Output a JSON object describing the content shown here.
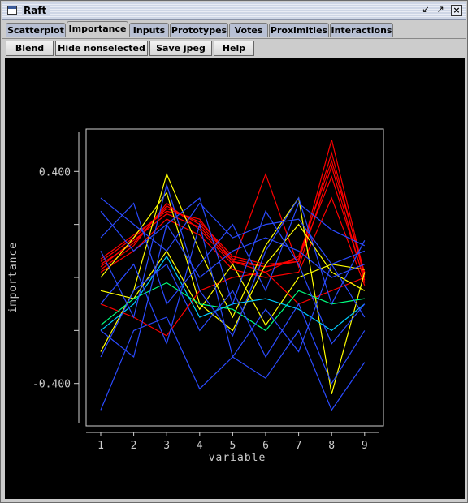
{
  "window": {
    "title": "Raft"
  },
  "tabs": [
    {
      "label": "Scatterplot",
      "active": false
    },
    {
      "label": "Importance",
      "active": true
    },
    {
      "label": "Inputs",
      "active": false
    },
    {
      "label": "Prototypes",
      "active": false
    },
    {
      "label": "Votes",
      "active": false
    },
    {
      "label": "Proximities",
      "active": false
    },
    {
      "label": "Interactions",
      "active": false
    }
  ],
  "toolbar": {
    "blend": "Blend",
    "hide_nonselected": "Hide nonselected",
    "save_jpeg": "Save jpeg",
    "help": "Help"
  },
  "chart_data": {
    "type": "line",
    "xlabel": "variable",
    "ylabel": "importance",
    "categories": [
      "1",
      "2",
      "3",
      "4",
      "5",
      "6",
      "7",
      "8",
      "9"
    ],
    "ylim": [
      -0.56,
      0.56
    ],
    "yticks": [
      -0.4,
      0.4
    ],
    "ytick_labels": [
      "-0.400",
      "0.400"
    ],
    "series": [
      {
        "color": "#ff0000",
        "values": [
          0.05,
          0.13,
          0.27,
          0.2,
          0.07,
          0.04,
          0.06,
          0.47,
          0.0
        ]
      },
      {
        "color": "#ff0000",
        "values": [
          0.07,
          0.16,
          0.25,
          0.22,
          0.06,
          0.02,
          0.08,
          0.44,
          0.02
        ]
      },
      {
        "color": "#ff0000",
        "values": [
          0.03,
          0.12,
          0.28,
          0.18,
          0.05,
          0.39,
          0.04,
          0.42,
          -0.02
        ]
      },
      {
        "color": "#ff0000",
        "values": [
          0.06,
          0.15,
          0.26,
          0.21,
          0.08,
          0.05,
          0.06,
          0.52,
          0.01
        ]
      },
      {
        "color": "#ff0000",
        "values": [
          0.04,
          0.14,
          0.24,
          0.19,
          0.06,
          0.04,
          0.07,
          0.38,
          -0.01
        ]
      },
      {
        "color": "#ff0000",
        "values": [
          0.02,
          0.1,
          0.22,
          0.16,
          0.03,
          0.0,
          0.02,
          0.3,
          -0.03
        ]
      },
      {
        "color": "#ff0000",
        "values": [
          -0.1,
          -0.15,
          -0.22,
          -0.05,
          0.0,
          0.02,
          -0.1,
          -0.05,
          0.0
        ]
      },
      {
        "color": "#ffff00",
        "values": [
          -0.28,
          -0.05,
          0.39,
          0.1,
          -0.15,
          0.12,
          0.3,
          -0.44,
          0.02
        ]
      },
      {
        "color": "#ffff00",
        "values": [
          0.0,
          0.15,
          0.32,
          -0.1,
          -0.2,
          0.05,
          0.2,
          0.02,
          -0.05
        ]
      },
      {
        "color": "#ffff00",
        "values": [
          -0.05,
          -0.08,
          0.1,
          -0.12,
          0.05,
          -0.18,
          0.0,
          0.05,
          0.03
        ]
      },
      {
        "color": "#00ff80",
        "values": [
          -0.18,
          -0.08,
          -0.02,
          -0.1,
          -0.12,
          -0.2,
          -0.05,
          -0.1,
          -0.08
        ]
      },
      {
        "color": "#00ccff",
        "values": [
          -0.2,
          -0.1,
          0.08,
          -0.15,
          -0.1,
          -0.08,
          -0.12,
          -0.2,
          -0.1
        ]
      },
      {
        "color": "#2b4bff",
        "values": [
          0.3,
          0.2,
          0.1,
          0.28,
          0.15,
          0.2,
          0.22,
          0.05,
          0.1
        ]
      },
      {
        "color": "#2b4bff",
        "values": [
          -0.5,
          -0.2,
          -0.15,
          -0.42,
          -0.3,
          -0.38,
          -0.2,
          -0.5,
          -0.32
        ]
      },
      {
        "color": "#2b4bff",
        "values": [
          -0.2,
          -0.3,
          0.2,
          0.3,
          -0.1,
          0.25,
          0.05,
          -0.25,
          -0.1
        ]
      },
      {
        "color": "#2b4bff",
        "values": [
          0.1,
          -0.15,
          0.35,
          -0.05,
          -0.22,
          0.1,
          0.3,
          -0.1,
          0.14
        ]
      },
      {
        "color": "#2b4bff",
        "values": [
          -0.1,
          0.05,
          -0.25,
          0.2,
          -0.3,
          -0.12,
          -0.28,
          0.05,
          -0.15
        ]
      },
      {
        "color": "#2b4bff",
        "values": [
          0.15,
          0.28,
          -0.1,
          0.05,
          0.2,
          -0.05,
          0.28,
          0.18,
          0.12
        ]
      },
      {
        "color": "#2b4bff",
        "values": [
          -0.3,
          -0.05,
          0.05,
          -0.2,
          -0.05,
          -0.3,
          -0.1,
          -0.4,
          -0.2
        ]
      },
      {
        "color": "#2b4bff",
        "values": [
          0.25,
          0.1,
          0.2,
          0.0,
          0.1,
          0.15,
          0.1,
          0.0,
          0.05
        ]
      }
    ]
  }
}
